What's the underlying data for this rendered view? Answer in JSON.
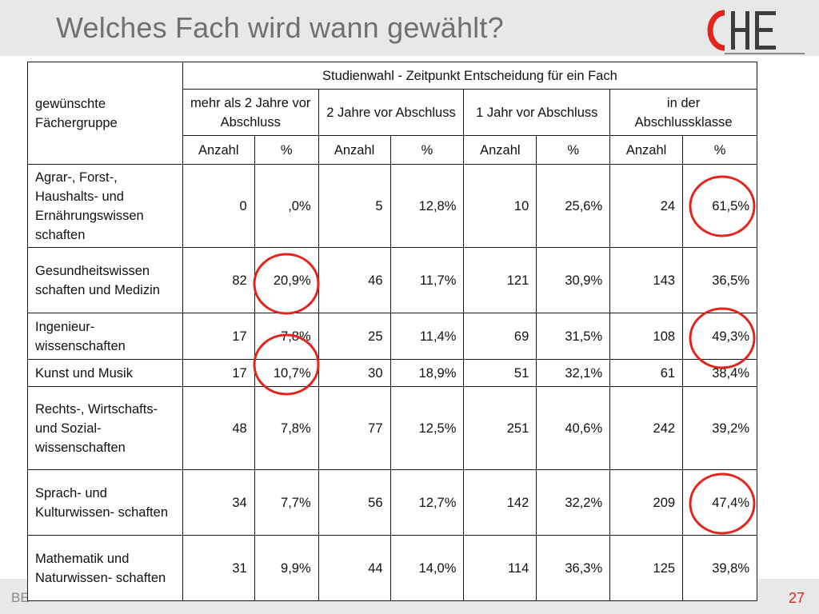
{
  "slide": {
    "title": "Welches Fach wird wann gewählt?",
    "logo_text": "CHE",
    "footer_left": "BE",
    "page_number": "27",
    "accent_color": "#e2241a"
  },
  "table": {
    "row_header_label": "gewünschte Fächergruppe",
    "super_header": "Studienwahl - Zeitpunkt Entscheidung für ein Fach",
    "groups": [
      "mehr als 2 Jahre vor Abschluss",
      "2 Jahre vor Abschluss",
      "1 Jahr vor Abschluss",
      "in der Abschlussklasse"
    ],
    "sub_headers": [
      "Anzahl",
      "%",
      "Anzahl",
      "%",
      "Anzahl",
      "%",
      "Anzahl",
      "%"
    ],
    "rows": [
      {
        "label": "Agrar-, Forst-, Haushalts- und Ernährungswissen schaften",
        "cells": [
          "0",
          ",0%",
          "5",
          "12,8%",
          "10",
          "25,6%",
          "24",
          "61,5%"
        ]
      },
      {
        "label": "Gesundheitswissen schaften und Medizin",
        "cells": [
          "82",
          "20,9%",
          "46",
          "11,7%",
          "121",
          "30,9%",
          "143",
          "36,5%"
        ]
      },
      {
        "label": "Ingenieur- wissenschaften",
        "cells": [
          "17",
          "7,8%",
          "25",
          "11,4%",
          "69",
          "31,5%",
          "108",
          "49,3%"
        ]
      },
      {
        "label": "Kunst und Musik",
        "cells": [
          "17",
          "10,7%",
          "30",
          "18,9%",
          "51",
          "32,1%",
          "61",
          "38,4%"
        ]
      },
      {
        "label": "Rechts-, Wirtschafts- und Sozial- wissenschaften",
        "cells": [
          "48",
          "7,8%",
          "77",
          "12,5%",
          "251",
          "40,6%",
          "242",
          "39,2%"
        ]
      },
      {
        "label": "Sprach- und Kulturwissen- schaften",
        "cells": [
          "34",
          "7,7%",
          "56",
          "12,7%",
          "142",
          "32,2%",
          "209",
          "47,4%"
        ]
      },
      {
        "label": "Mathematik und Naturwissen- schaften",
        "cells": [
          "31",
          "9,9%",
          "44",
          "14,0%",
          "114",
          "36,3%",
          "125",
          "39,8%"
        ]
      }
    ],
    "highlighted_cells": [
      {
        "row": "Agrar-, Forst-, Haushalts- und Ernährungswissen schaften",
        "column": "in der Abschlussklasse %",
        "value": "61,5%"
      },
      {
        "row": "Gesundheitswissen schaften und Medizin",
        "column": "mehr als 2 Jahre vor Abschluss %",
        "value": "20,9%"
      },
      {
        "row": "Ingenieur- wissenschaften",
        "column": "in der Abschlussklasse %",
        "value": "49,3%"
      },
      {
        "row": "Kunst und Musik",
        "column": "mehr als 2 Jahre vor Abschluss %",
        "value": "10,7%"
      },
      {
        "row": "Sprach- und Kulturwissen- schaften",
        "column": "in der Abschlussklasse %",
        "value": "47,4%"
      }
    ]
  }
}
